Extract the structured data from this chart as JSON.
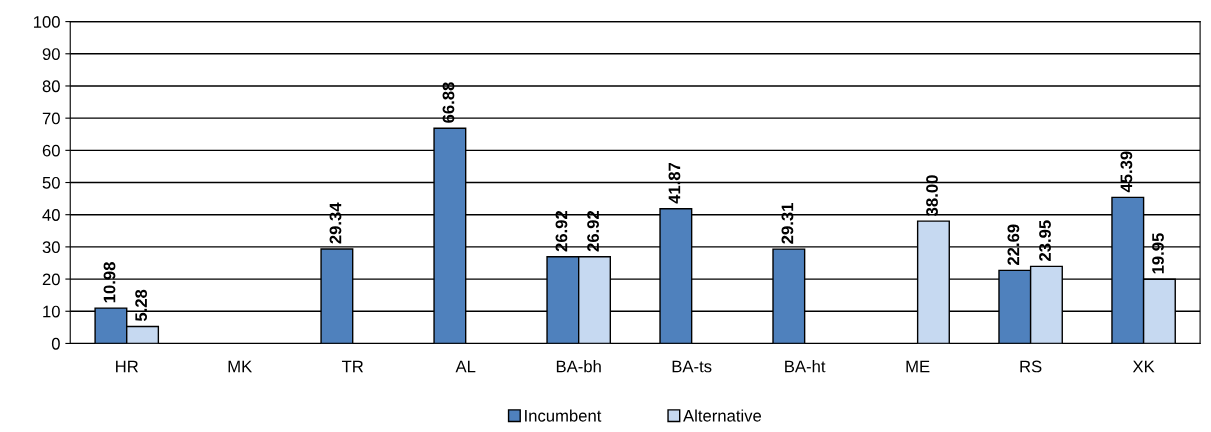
{
  "chart_data": {
    "type": "bar",
    "categories": [
      "HR",
      "MK",
      "TR",
      "AL",
      "BA-bh",
      "BA-ts",
      "BA-ht",
      "ME",
      "RS",
      "XK"
    ],
    "series": [
      {
        "name": "Incumbent",
        "color": "#4f81bd",
        "values": [
          10.98,
          null,
          29.34,
          66.88,
          26.92,
          41.87,
          29.31,
          null,
          22.69,
          45.39
        ],
        "value_labels": [
          "10.98",
          null,
          "29.34",
          "66.88",
          "26.92",
          "41.87",
          "29.31",
          null,
          "22.69",
          "45.39"
        ]
      },
      {
        "name": "Alternative",
        "color": "#c6d9f1",
        "values": [
          5.28,
          null,
          null,
          null,
          26.92,
          null,
          null,
          38.0,
          23.95,
          19.95
        ],
        "value_labels": [
          "5.28",
          null,
          null,
          null,
          "26.92",
          null,
          null,
          "38.00",
          "23.95",
          "19.95"
        ]
      }
    ],
    "ylim": [
      0,
      100
    ],
    "yticks": [
      0,
      10,
      20,
      30,
      40,
      50,
      60,
      70,
      80,
      90,
      100
    ],
    "grid": "y",
    "legend": "bottom"
  }
}
